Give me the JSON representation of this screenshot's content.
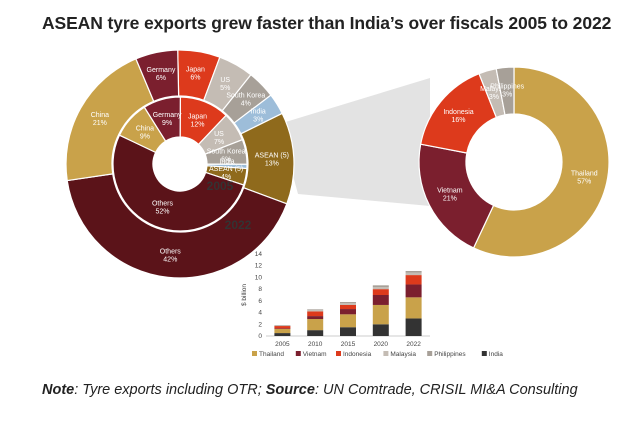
{
  "title": "ASEAN tyre exports grew faster than India’s over fiscals 2005 to 2022",
  "note": {
    "note_label": "Note",
    "note_text": ": Tyre exports including OTR; ",
    "source_label": "Source",
    "source_text": ": UN Comtrade, CRISIL MI&A Consulting"
  },
  "colors": {
    "China": "#c9a24a",
    "Germany": "#7b1f2e",
    "Japan": "#dd3a1c",
    "US": "#c4bcb4",
    "South Korea": "#a7a098",
    "India": "#9dbdd9",
    "ASEAN (5)": "#8f6a1c",
    "Others": "#5b1319",
    "Thailand": "#c9a24a",
    "Vietnam": "#7b1f2e",
    "Indonesia": "#dd3a1c",
    "Malaysia": "#c4bcb4",
    "Philippines": "#a7a098",
    "India_bar": "#333333"
  },
  "chart_data": [
    {
      "type": "pie",
      "variant": "nested-donut",
      "center_label": "2005",
      "ring": "inner",
      "slices": [
        {
          "name": "Japan",
          "value": 12,
          "label": "Japan\n12%"
        },
        {
          "name": "US",
          "value": 7,
          "label": "US\n7%"
        },
        {
          "name": "South Korea",
          "value": 6,
          "label": "South Korea\n6%"
        },
        {
          "name": "India",
          "value": 1,
          "label": "India\n1%"
        },
        {
          "name": "ASEAN (5)",
          "value": 4,
          "label": "ASEAN (5)\n4%"
        },
        {
          "name": "Others",
          "value": 52,
          "label": "Others\n52%"
        },
        {
          "name": "China",
          "value": 9,
          "label": "China\n9%"
        },
        {
          "name": "Germany",
          "value": 9,
          "label": "Germany\n9%"
        }
      ]
    },
    {
      "type": "pie",
      "variant": "nested-donut",
      "center_label": "2022",
      "ring": "outer",
      "slices": [
        {
          "name": "Japan",
          "value": 6,
          "label": "Japan\n6%"
        },
        {
          "name": "US",
          "value": 5,
          "label": "US\n5%"
        },
        {
          "name": "South Korea",
          "value": 4,
          "label": "South Korea\n4%"
        },
        {
          "name": "India",
          "value": 3,
          "label": "India\n3%"
        },
        {
          "name": "ASEAN (5)",
          "value": 13,
          "label": "ASEAN (5)\n13%"
        },
        {
          "name": "Others",
          "value": 42,
          "label": "Others\n42%"
        },
        {
          "name": "China",
          "value": 21,
          "label": "China\n21%"
        },
        {
          "name": "Germany",
          "value": 6,
          "label": "Germany\n6%"
        }
      ]
    },
    {
      "type": "pie",
      "variant": "donut",
      "slices": [
        {
          "name": "Thailand",
          "value": 57,
          "label": "Thailand\n57%"
        },
        {
          "name": "Vietnam",
          "value": 21,
          "label": "Vietnam\n21%"
        },
        {
          "name": "Indonesia",
          "value": 16,
          "label": "Indonesia\n16%"
        },
        {
          "name": "Malaysia",
          "value": 3,
          "label": "Malaysia\n3%"
        },
        {
          "name": "Philippines",
          "value": 3,
          "label": "Philippines\n3%"
        }
      ]
    },
    {
      "type": "bar",
      "stacked": true,
      "categories": [
        "2005",
        "2010",
        "2015",
        "2020",
        "2022"
      ],
      "ylabel": "$ billion",
      "ylim": [
        0,
        14
      ],
      "yticks": [
        0,
        2,
        4,
        6,
        8,
        10,
        12,
        14
      ],
      "legend_position": "bottom",
      "series": [
        {
          "name": "India",
          "values": [
            0.5,
            1.0,
            1.5,
            2.0,
            3.0
          ]
        },
        {
          "name": "Thailand",
          "values": [
            0.7,
            1.9,
            2.2,
            3.3,
            3.6
          ]
        },
        {
          "name": "Vietnam",
          "values": [
            0.1,
            0.5,
            0.9,
            1.7,
            2.2
          ]
        },
        {
          "name": "Indonesia",
          "values": [
            0.4,
            0.8,
            0.7,
            1.0,
            1.6
          ]
        },
        {
          "name": "Malaysia",
          "values": [
            0.1,
            0.2,
            0.3,
            0.35,
            0.4
          ]
        },
        {
          "name": "Philippines",
          "values": [
            0.06,
            0.15,
            0.2,
            0.3,
            0.3
          ]
        }
      ],
      "legend": [
        "Thailand",
        "Vietnam",
        "Indonesia",
        "Malaysia",
        "Philippines",
        "India"
      ]
    }
  ]
}
